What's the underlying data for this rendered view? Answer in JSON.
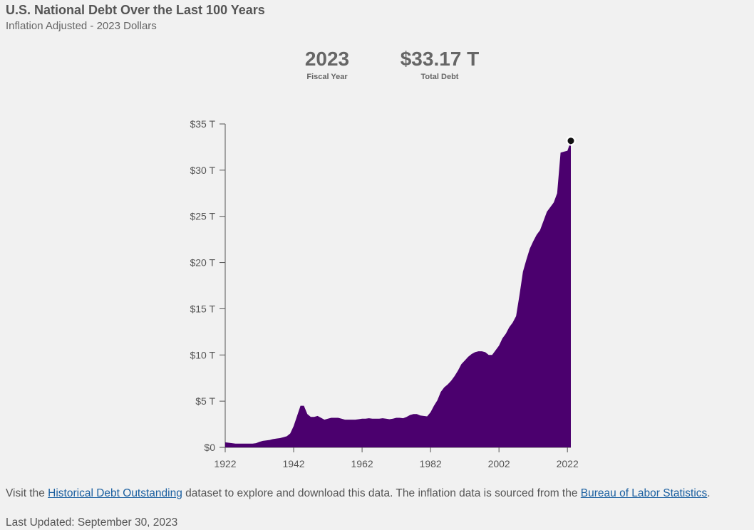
{
  "header": {
    "title": "U.S. National Debt Over the Last 100 Years",
    "subtitle": "Inflation Adjusted - 2023 Dollars"
  },
  "stats": {
    "year_value": "2023",
    "year_label": "Fiscal Year",
    "debt_value": "$33.17 T",
    "debt_label": "Total Debt"
  },
  "footer": {
    "text_1": "Visit the ",
    "link_dataset": "Historical Debt Outstanding",
    "text_2": " dataset to explore and download this data. The inflation data is sourced from the ",
    "link_bls": "Bureau of Labor Statistics",
    "text_3": ".",
    "last_updated": "Last Updated: September 30, 2023"
  },
  "colors": {
    "area": "#4b006e",
    "axis": "#555555",
    "marker": "#111111"
  },
  "chart_data": {
    "type": "area",
    "title": "U.S. National Debt Over the Last 100 Years",
    "subtitle": "Inflation Adjusted - 2023 Dollars",
    "xlabel": "",
    "ylabel": "",
    "xlim": [
      1922,
      2023
    ],
    "ylim": [
      0,
      35
    ],
    "x_ticks": [
      "1922",
      "1942",
      "1962",
      "1982",
      "2002",
      "2022"
    ],
    "x_tick_values": [
      1922,
      1942,
      1962,
      1982,
      2002,
      2022
    ],
    "y_ticks": [
      "$0",
      "$5 T",
      "$10 T",
      "$15 T",
      "$20 T",
      "$25 T",
      "$30 T",
      "$35 T"
    ],
    "y_tick_values": [
      0,
      5,
      10,
      15,
      20,
      25,
      30,
      35
    ],
    "grid": false,
    "highlight_point": {
      "x": 2023,
      "y": 33.17
    },
    "x": [
      1922,
      1923,
      1924,
      1925,
      1926,
      1927,
      1928,
      1929,
      1930,
      1931,
      1932,
      1933,
      1934,
      1935,
      1936,
      1937,
      1938,
      1939,
      1940,
      1941,
      1942,
      1943,
      1944,
      1945,
      1946,
      1947,
      1948,
      1949,
      1950,
      1951,
      1952,
      1953,
      1954,
      1955,
      1956,
      1957,
      1958,
      1959,
      1960,
      1961,
      1962,
      1963,
      1964,
      1965,
      1966,
      1967,
      1968,
      1969,
      1970,
      1971,
      1972,
      1973,
      1974,
      1975,
      1976,
      1977,
      1978,
      1979,
      1980,
      1981,
      1982,
      1983,
      1984,
      1985,
      1986,
      1987,
      1988,
      1989,
      1990,
      1991,
      1992,
      1993,
      1994,
      1995,
      1996,
      1997,
      1998,
      1999,
      2000,
      2001,
      2002,
      2003,
      2004,
      2005,
      2006,
      2007,
      2008,
      2009,
      2010,
      2011,
      2012,
      2013,
      2014,
      2015,
      2016,
      2017,
      2018,
      2019,
      2020,
      2021,
      2022,
      2023
    ],
    "values": [
      0.55,
      0.5,
      0.45,
      0.4,
      0.4,
      0.4,
      0.4,
      0.4,
      0.4,
      0.45,
      0.6,
      0.7,
      0.75,
      0.8,
      0.9,
      0.95,
      1.0,
      1.1,
      1.2,
      1.5,
      2.3,
      3.4,
      4.5,
      4.5,
      3.6,
      3.3,
      3.3,
      3.4,
      3.2,
      3.0,
      3.1,
      3.2,
      3.2,
      3.2,
      3.1,
      3.0,
      3.0,
      3.0,
      3.0,
      3.05,
      3.1,
      3.1,
      3.15,
      3.1,
      3.1,
      3.1,
      3.15,
      3.1,
      3.05,
      3.1,
      3.2,
      3.2,
      3.15,
      3.3,
      3.5,
      3.6,
      3.6,
      3.45,
      3.4,
      3.35,
      3.8,
      4.5,
      5.1,
      6.0,
      6.5,
      6.8,
      7.2,
      7.7,
      8.3,
      9.0,
      9.4,
      9.8,
      10.1,
      10.3,
      10.4,
      10.4,
      10.3,
      10.0,
      10.0,
      10.5,
      11.0,
      11.8,
      12.3,
      13.0,
      13.5,
      14.2,
      16.5,
      19.0,
      20.3,
      21.5,
      22.3,
      23.0,
      23.5,
      24.5,
      25.5,
      26.0,
      26.5,
      27.5,
      31.9,
      32.0,
      32.1,
      33.17
    ]
  }
}
